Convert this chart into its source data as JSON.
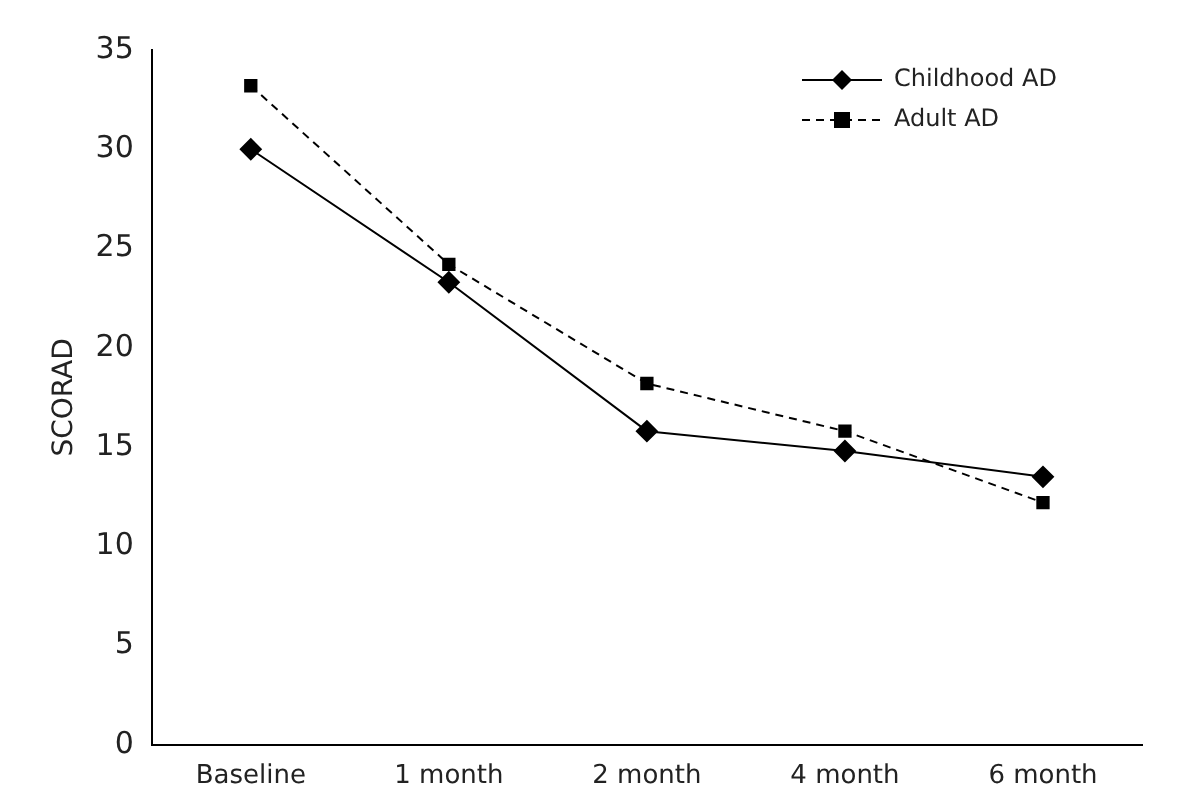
{
  "chart_data": {
    "type": "line",
    "ylabel": "SCORAD",
    "categories": [
      "Baseline",
      "1 month",
      "2 month",
      "4 month",
      "6 month"
    ],
    "series": [
      {
        "name": "Childhood AD",
        "color": "#000000",
        "marker": "diamond",
        "line_style": "solid",
        "values": [
          30,
          23.3,
          15.8,
          14.8,
          13.5
        ]
      },
      {
        "name": "Adult AD",
        "color": "#000000",
        "marker": "square",
        "line_style": "dashed",
        "values": [
          33.2,
          24.2,
          18.2,
          15.8,
          12.2
        ]
      }
    ],
    "ylim": [
      0,
      35
    ],
    "yticks": [
      0,
      5,
      10,
      15,
      20,
      25,
      30,
      35
    ],
    "grid": false,
    "legend": "top right"
  }
}
